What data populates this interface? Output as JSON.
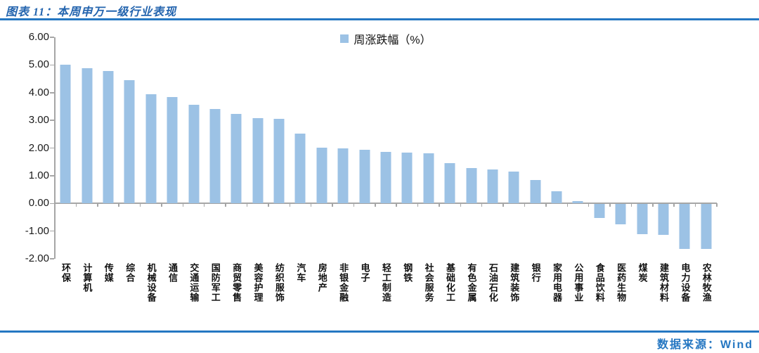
{
  "header": {
    "title": "图表 11：本周申万一级行业表现"
  },
  "footer": {
    "source_label": "数据来源：Wind"
  },
  "chart_data": {
    "type": "bar",
    "title": "本周申万一级行业表现",
    "legend": [
      "周涨跌幅（%）"
    ],
    "legend_position": "top-center",
    "xlabel": "",
    "ylabel": "",
    "ylim": [
      -2.0,
      6.0
    ],
    "ytick_labels": [
      "6.00",
      "5.00",
      "4.00",
      "3.00",
      "2.00",
      "1.00",
      "0.00",
      "-1.00",
      "-2.00"
    ],
    "grid": false,
    "bar_color": "#9CC2E5",
    "axis_color": "#A6A6A6",
    "accent_blue": "#2577C2",
    "categories": [
      "环保",
      "计算机",
      "传媒",
      "综合",
      "机械设备",
      "通信",
      "交通运输",
      "国防军工",
      "商贸零售",
      "美容护理",
      "纺织服饰",
      "汽车",
      "房地产",
      "非银金融",
      "电子",
      "轻工制造",
      "钢铁",
      "社会服务",
      "基础化工",
      "有色金属",
      "石油石化",
      "建筑装饰",
      "银行",
      "家用电器",
      "公用事业",
      "食品饮料",
      "医药生物",
      "煤炭",
      "建筑材料",
      "电力设备",
      "农林牧渔"
    ],
    "values": [
      5.0,
      4.89,
      4.78,
      4.46,
      3.95,
      3.83,
      3.57,
      3.4,
      3.24,
      3.08,
      3.06,
      2.53,
      2.02,
      2.0,
      1.93,
      1.86,
      1.83,
      1.8,
      1.46,
      1.27,
      1.23,
      1.16,
      0.85,
      0.44,
      0.07,
      -0.51,
      -0.74,
      -1.08,
      -1.12,
      -1.61,
      -1.63
    ]
  }
}
